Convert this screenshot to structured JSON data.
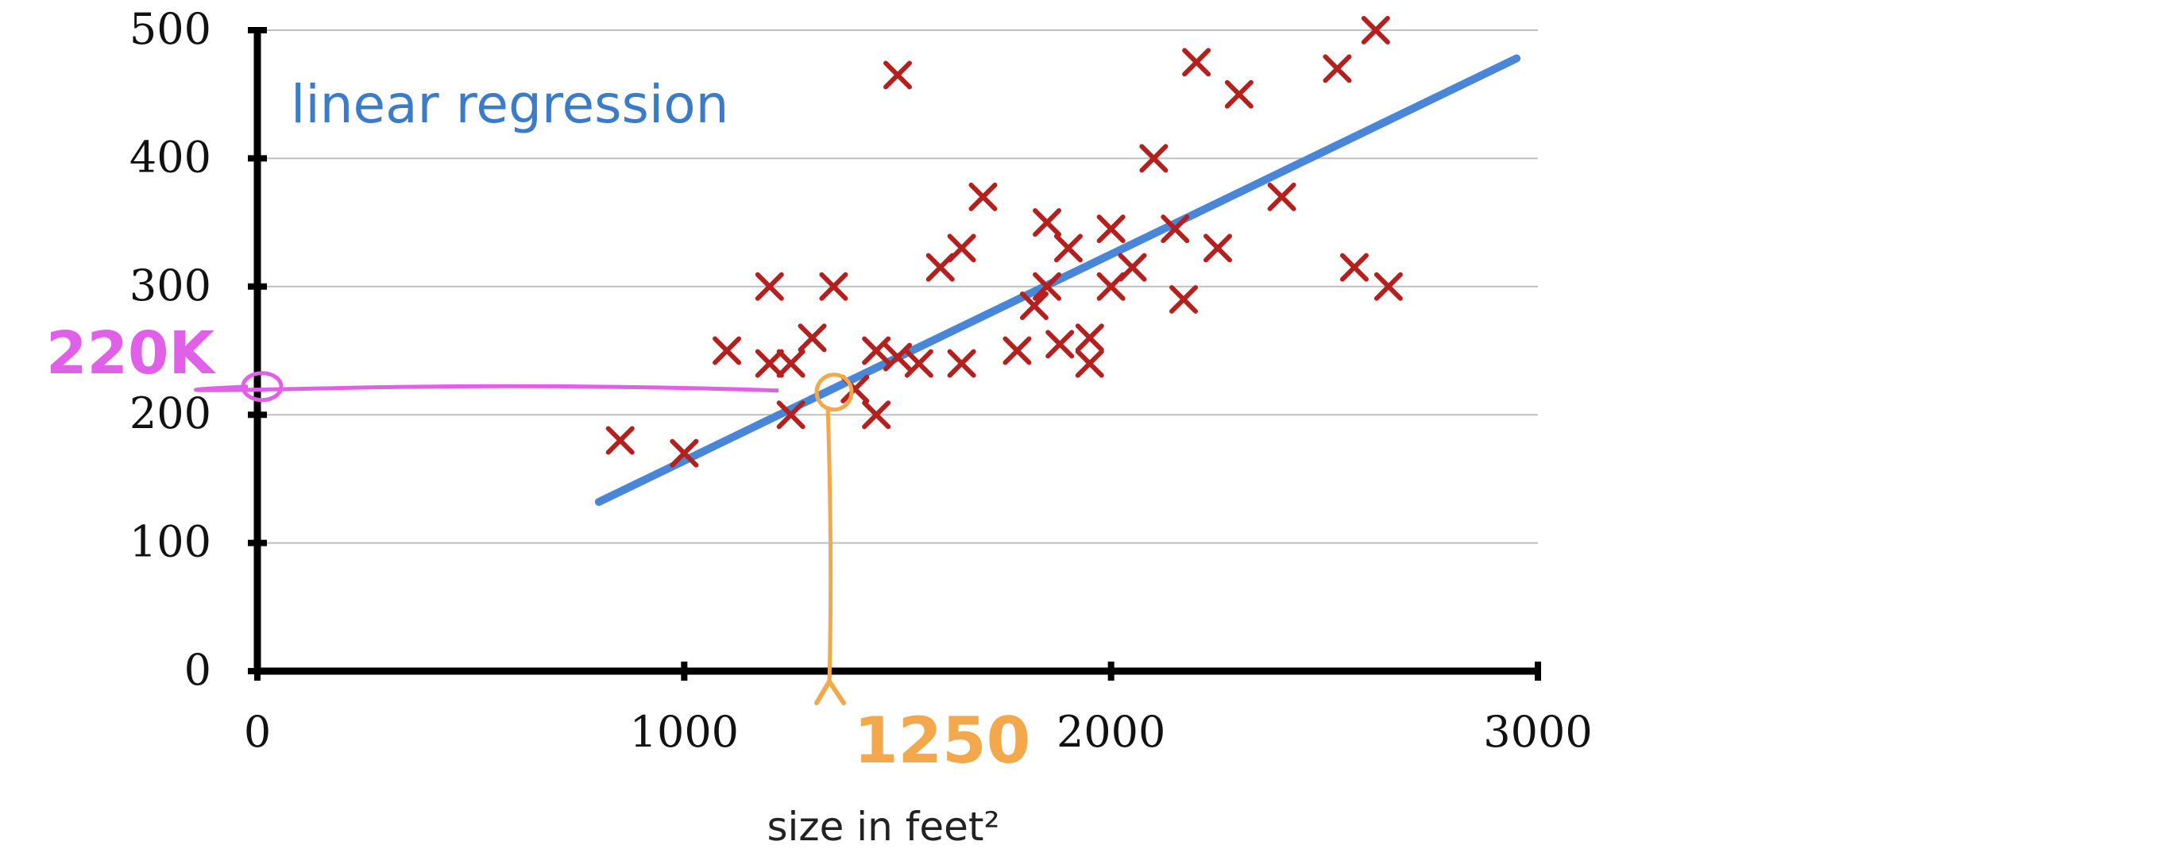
{
  "chart_data": {
    "type": "scatter",
    "title": "linear regression",
    "xlabel": "size in feet²",
    "ylabel": "",
    "xlim": [
      0,
      3000
    ],
    "ylim": [
      0,
      500
    ],
    "xticks": [
      "0",
      "1000",
      "2000",
      "3000"
    ],
    "yticks": [
      "0",
      "100",
      "200",
      "300",
      "400",
      "500"
    ],
    "grid": "horizontal",
    "points": [
      [
        850,
        180
      ],
      [
        1000,
        170
      ],
      [
        1100,
        250
      ],
      [
        1200,
        300
      ],
      [
        1200,
        240
      ],
      [
        1250,
        200
      ],
      [
        1250,
        240
      ],
      [
        1300,
        260
      ],
      [
        1350,
        300
      ],
      [
        1400,
        220
      ],
      [
        1450,
        200
      ],
      [
        1450,
        250
      ],
      [
        1500,
        465
      ],
      [
        1500,
        245
      ],
      [
        1550,
        240
      ],
      [
        1600,
        315
      ],
      [
        1650,
        330
      ],
      [
        1650,
        240
      ],
      [
        1700,
        370
      ],
      [
        1780,
        250
      ],
      [
        1820,
        285
      ],
      [
        1850,
        350
      ],
      [
        1850,
        300
      ],
      [
        1880,
        255
      ],
      [
        1900,
        330
      ],
      [
        1950,
        240
      ],
      [
        1950,
        260
      ],
      [
        2000,
        300
      ],
      [
        2000,
        345
      ],
      [
        2050,
        315
      ],
      [
        2100,
        400
      ],
      [
        2150,
        345
      ],
      [
        2170,
        290
      ],
      [
        2200,
        475
      ],
      [
        2250,
        330
      ],
      [
        2300,
        450
      ],
      [
        2400,
        370
      ],
      [
        2530,
        470
      ],
      [
        2570,
        315
      ],
      [
        2620,
        500
      ],
      [
        2650,
        300
      ]
    ],
    "fit_line": {
      "x": [
        800,
        2950
      ],
      "y": [
        132,
        478
      ]
    },
    "annotations": {
      "x_marker": {
        "label": "1250",
        "x": 1340
      },
      "y_marker": {
        "label": "220K",
        "y": 222
      }
    },
    "colors": {
      "points": "#b3201e",
      "line": "#4a86d8",
      "title": "#3b7bc8",
      "grid": "#bfbfbf",
      "axis": "#000000",
      "x_marker": "#f2a84b",
      "y_marker": "#e060e8"
    }
  }
}
